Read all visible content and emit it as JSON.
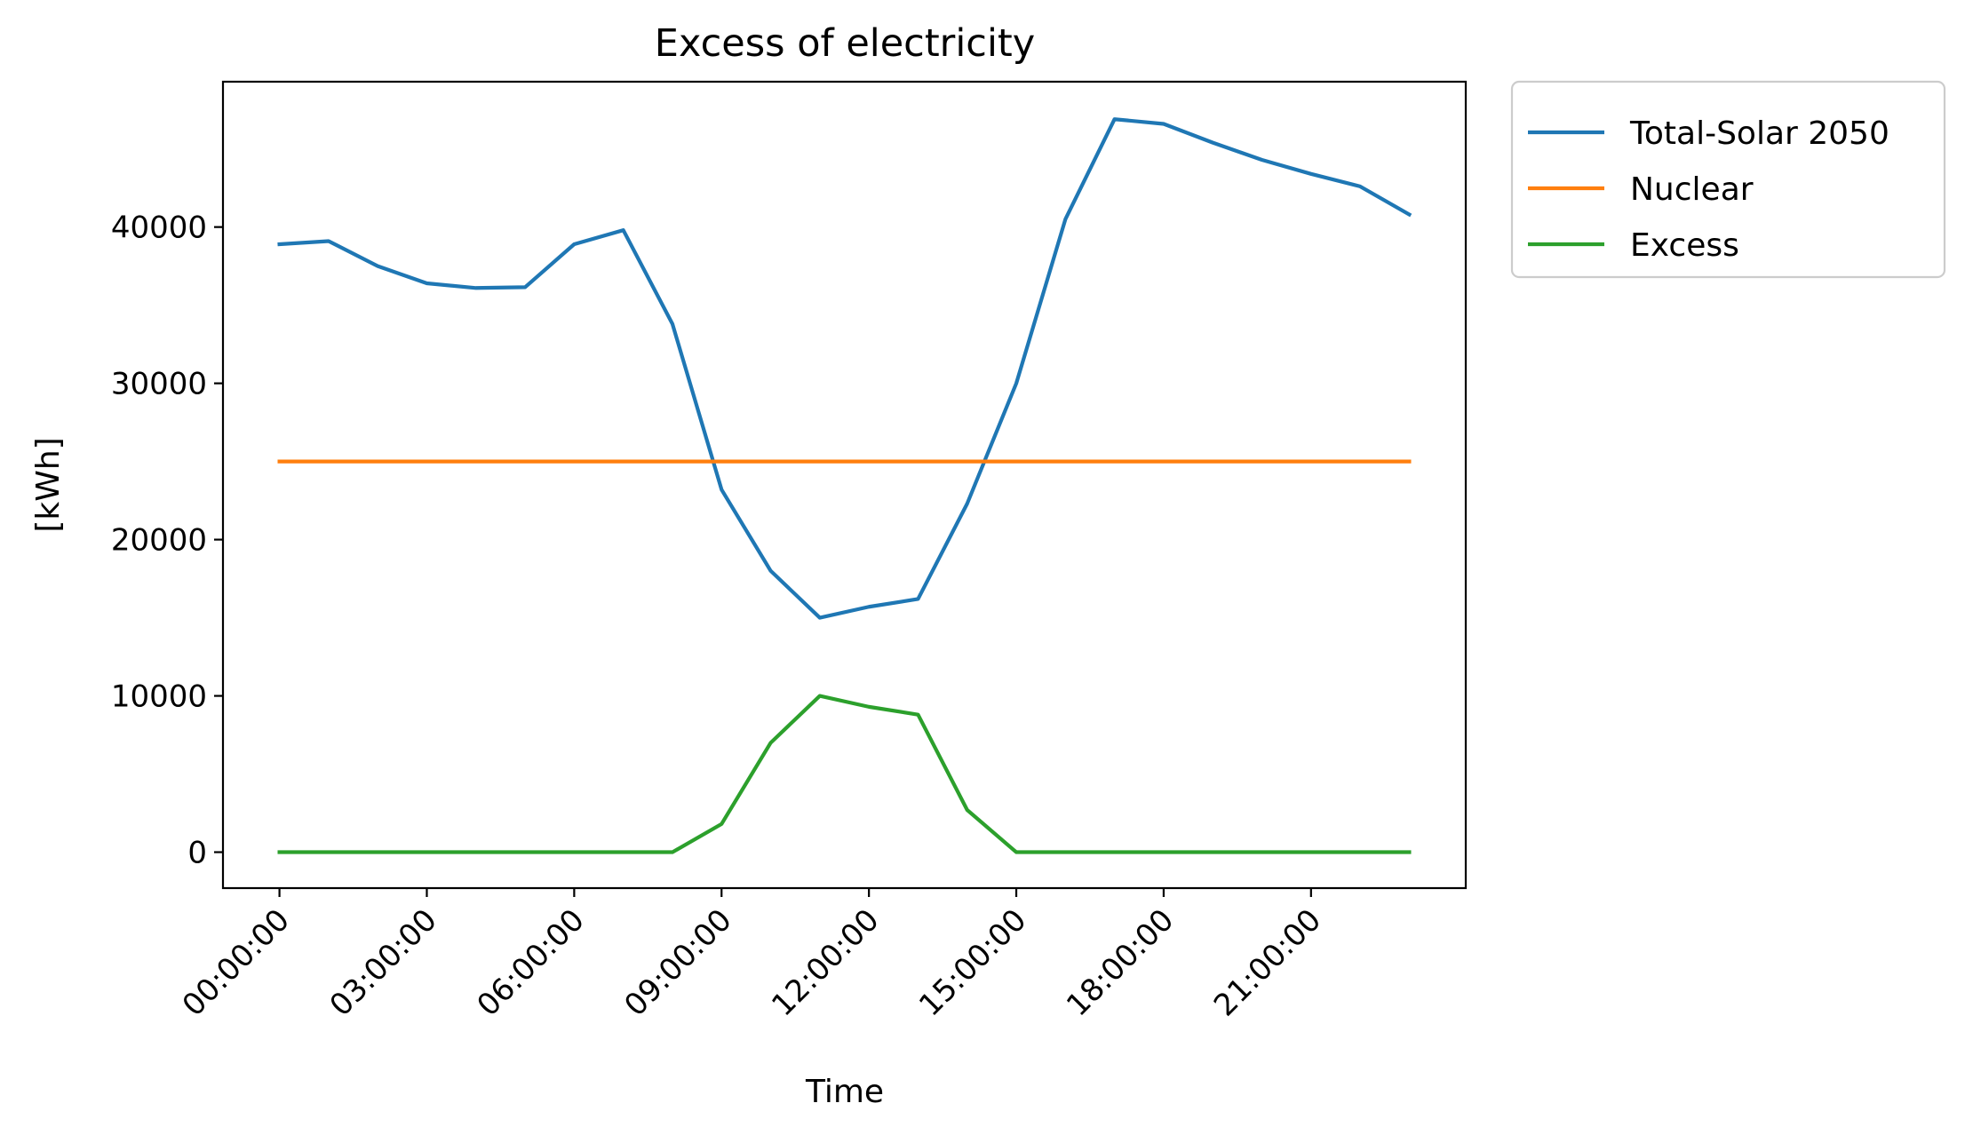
{
  "chart_data": {
    "type": "line",
    "title": "Excess of electricity",
    "xlabel": "Time",
    "ylabel": "[kWh]",
    "x_tick_labels": [
      "00:00:00",
      "03:00:00",
      "06:00:00",
      "09:00:00",
      "12:00:00",
      "15:00:00",
      "18:00:00",
      "21:00:00"
    ],
    "x_hours": [
      0,
      1,
      2,
      3,
      4,
      5,
      6,
      7,
      8,
      9,
      10,
      11,
      12,
      13,
      14,
      15,
      16,
      17,
      18,
      19,
      20,
      21,
      22,
      23
    ],
    "y_ticks": [
      0,
      10000,
      20000,
      30000,
      40000
    ],
    "y_tick_labels": [
      "0",
      "10000",
      "20000",
      "30000",
      "40000"
    ],
    "xlim": [
      -1.15,
      24.15
    ],
    "ylim": [
      -2300,
      49300
    ],
    "grid": false,
    "legend_position": "outside-top-right",
    "series": [
      {
        "name": "Total-Solar 2050",
        "color": "#1f77b4",
        "values": [
          38900,
          39100,
          37500,
          36400,
          36100,
          36150,
          38900,
          39800,
          33800,
          23200,
          18000,
          15000,
          15700,
          16200,
          22300,
          30000,
          40500,
          46900,
          46600,
          45400,
          44300,
          43400,
          42600,
          40800
        ]
      },
      {
        "name": "Nuclear",
        "color": "#ff7f0e",
        "values": [
          25000,
          25000,
          25000,
          25000,
          25000,
          25000,
          25000,
          25000,
          25000,
          25000,
          25000,
          25000,
          25000,
          25000,
          25000,
          25000,
          25000,
          25000,
          25000,
          25000,
          25000,
          25000,
          25000,
          25000
        ]
      },
      {
        "name": "Excess",
        "color": "#2ca02c",
        "values": [
          0,
          0,
          0,
          0,
          0,
          0,
          0,
          0,
          0,
          1800,
          7000,
          10000,
          9300,
          8800,
          2700,
          0,
          0,
          0,
          0,
          0,
          0,
          0,
          0,
          0
        ]
      }
    ]
  }
}
